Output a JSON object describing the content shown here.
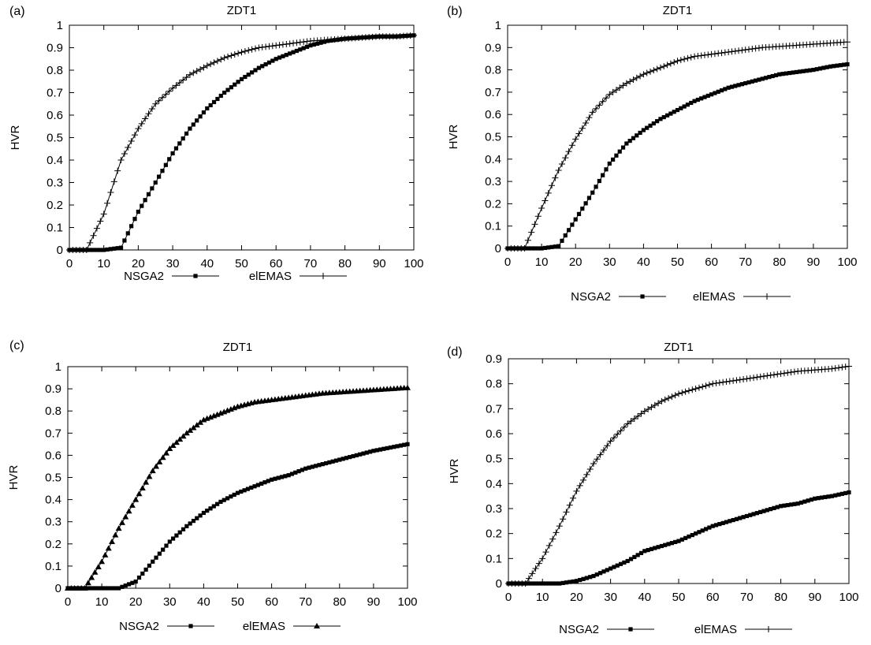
{
  "chart_data": [
    {
      "panel": "(a)",
      "type": "line",
      "title": "ZDT1",
      "xlabel": "",
      "ylabel": "HVR",
      "xlim": [
        0,
        100
      ],
      "ylim": [
        0,
        1
      ],
      "xticks": [
        0,
        10,
        20,
        30,
        40,
        50,
        60,
        70,
        80,
        90,
        100
      ],
      "yticks": [
        0,
        0.1,
        0.2,
        0.3,
        0.4,
        0.5,
        0.6,
        0.7,
        0.8,
        0.9,
        1
      ],
      "ytick_labels": [
        "0",
        "0.1",
        "0.2",
        "0.3",
        "0.4",
        "0.5",
        "0.6",
        "0.7",
        "0.8",
        "0.9",
        "1"
      ],
      "grid": false,
      "legend_position": "bottom",
      "x": [
        0,
        5,
        10,
        15,
        20,
        25,
        30,
        35,
        40,
        45,
        50,
        55,
        60,
        65,
        70,
        75,
        80,
        85,
        90,
        95,
        100
      ],
      "series": [
        {
          "name": "NSGA2",
          "marker": "square",
          "values": [
            0,
            0,
            0,
            0.01,
            0.17,
            0.3,
            0.43,
            0.54,
            0.63,
            0.7,
            0.76,
            0.81,
            0.85,
            0.88,
            0.91,
            0.93,
            0.94,
            0.945,
            0.95,
            0.95,
            0.955
          ]
        },
        {
          "name": "elEMAS",
          "marker": "plus",
          "values": [
            0,
            0,
            0.16,
            0.4,
            0.54,
            0.65,
            0.72,
            0.78,
            0.82,
            0.855,
            0.88,
            0.9,
            0.91,
            0.92,
            0.93,
            0.935,
            0.94,
            0.945,
            0.95,
            0.95,
            0.955
          ]
        }
      ]
    },
    {
      "panel": "(b)",
      "type": "line",
      "title": "ZDT1",
      "xlabel": "",
      "ylabel": "HVR",
      "xlim": [
        0,
        100
      ],
      "ylim": [
        0,
        1
      ],
      "xticks": [
        0,
        10,
        20,
        30,
        40,
        50,
        60,
        70,
        80,
        90,
        100
      ],
      "yticks": [
        0,
        0.1,
        0.2,
        0.3,
        0.4,
        0.5,
        0.6,
        0.7,
        0.8,
        0.9,
        1
      ],
      "ytick_labels": [
        "0",
        "0.1",
        "0.2",
        "0.3",
        "0.4",
        "0.5",
        "0.6",
        "0.7",
        "0.8",
        "0.9",
        "1"
      ],
      "grid": false,
      "legend_position": "bottom",
      "x": [
        0,
        5,
        10,
        15,
        20,
        25,
        30,
        35,
        40,
        45,
        50,
        55,
        60,
        65,
        70,
        75,
        80,
        85,
        90,
        95,
        100
      ],
      "series": [
        {
          "name": "NSGA2",
          "marker": "square",
          "values": [
            0,
            0,
            0,
            0.01,
            0.13,
            0.25,
            0.38,
            0.47,
            0.53,
            0.58,
            0.62,
            0.66,
            0.69,
            0.72,
            0.74,
            0.76,
            0.78,
            0.79,
            0.8,
            0.815,
            0.825
          ]
        },
        {
          "name": "elEMAS",
          "marker": "plus",
          "values": [
            0,
            0,
            0.18,
            0.35,
            0.49,
            0.61,
            0.69,
            0.74,
            0.78,
            0.81,
            0.84,
            0.86,
            0.87,
            0.88,
            0.89,
            0.9,
            0.905,
            0.91,
            0.915,
            0.92,
            0.925
          ]
        }
      ]
    },
    {
      "panel": "(c)",
      "type": "line",
      "title": "ZDT1",
      "xlabel": "",
      "ylabel": "HVR",
      "xlim": [
        0,
        100
      ],
      "ylim": [
        0,
        1
      ],
      "xticks": [
        0,
        10,
        20,
        30,
        40,
        50,
        60,
        70,
        80,
        90,
        100
      ],
      "yticks": [
        0,
        0.1,
        0.2,
        0.3,
        0.4,
        0.5,
        0.6,
        0.7,
        0.8,
        0.9,
        1
      ],
      "ytick_labels": [
        "0",
        "0.1",
        "0.2",
        "0.3",
        "0.4",
        "0.5",
        "0.6",
        "0.7",
        "0.8",
        "0.9",
        "1"
      ],
      "grid": false,
      "legend_position": "bottom",
      "x": [
        0,
        5,
        10,
        15,
        20,
        25,
        30,
        35,
        40,
        45,
        50,
        55,
        60,
        65,
        70,
        75,
        80,
        85,
        90,
        95,
        100
      ],
      "series": [
        {
          "name": "NSGA2",
          "marker": "square",
          "values": [
            0,
            0,
            0,
            0,
            0.03,
            0.12,
            0.21,
            0.28,
            0.34,
            0.39,
            0.43,
            0.46,
            0.49,
            0.51,
            0.54,
            0.56,
            0.58,
            0.6,
            0.62,
            0.635,
            0.65
          ]
        },
        {
          "name": "elEMAS",
          "marker": "triangle",
          "values": [
            0,
            0,
            0.12,
            0.27,
            0.4,
            0.53,
            0.63,
            0.7,
            0.76,
            0.79,
            0.82,
            0.84,
            0.85,
            0.86,
            0.87,
            0.88,
            0.885,
            0.89,
            0.895,
            0.9,
            0.905
          ]
        }
      ]
    },
    {
      "panel": "(d)",
      "type": "line",
      "title": "ZDT1",
      "xlabel": "",
      "ylabel": "HVR",
      "xlim": [
        0,
        100
      ],
      "ylim": [
        0,
        0.9
      ],
      "xticks": [
        0,
        10,
        20,
        30,
        40,
        50,
        60,
        70,
        80,
        90,
        100
      ],
      "yticks": [
        0,
        0.1,
        0.2,
        0.3,
        0.4,
        0.5,
        0.6,
        0.7,
        0.8,
        0.9
      ],
      "ytick_labels": [
        "0",
        "0.1",
        "0.2",
        "0.3",
        "0.4",
        "0.5",
        "0.6",
        "0.7",
        "0.8",
        "0.9"
      ],
      "grid": false,
      "legend_position": "bottom",
      "x": [
        0,
        5,
        10,
        15,
        20,
        25,
        30,
        35,
        40,
        45,
        50,
        55,
        60,
        65,
        70,
        75,
        80,
        85,
        90,
        95,
        100
      ],
      "series": [
        {
          "name": "NSGA2",
          "marker": "square",
          "values": [
            0,
            0,
            0,
            0,
            0.01,
            0.03,
            0.06,
            0.09,
            0.13,
            0.15,
            0.17,
            0.2,
            0.23,
            0.25,
            0.27,
            0.29,
            0.31,
            0.32,
            0.34,
            0.35,
            0.365
          ]
        },
        {
          "name": "elEMAS",
          "marker": "plus",
          "values": [
            0,
            0,
            0.1,
            0.23,
            0.37,
            0.48,
            0.57,
            0.64,
            0.69,
            0.73,
            0.76,
            0.78,
            0.8,
            0.81,
            0.82,
            0.83,
            0.84,
            0.85,
            0.855,
            0.86,
            0.87
          ]
        }
      ]
    }
  ]
}
